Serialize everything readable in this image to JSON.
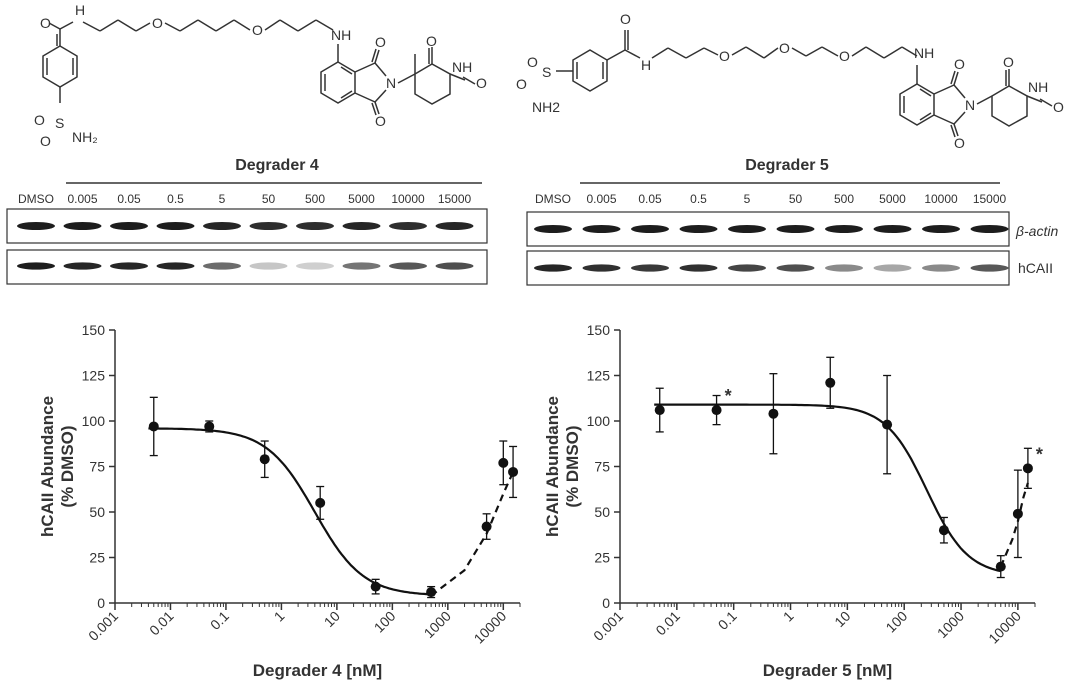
{
  "panels": [
    {
      "name": "degrader-4",
      "structure_atoms": {
        "amide_o": "O",
        "amide_nh": "H",
        "ether_o1": "O",
        "ether_o2": "O",
        "aryl_nh": "NH",
        "imide_o_top": "O",
        "imide_o_bottom": "O",
        "imide_n": "N",
        "glut_o_top": "O",
        "glut_nh": "NH",
        "glut_o_right": "O",
        "sulfonyl_o1": "O",
        "sulfonyl_s": "S",
        "sulfonyl_o2": "O",
        "sulfonyl_nh2": "NH₂"
      },
      "blot": {
        "title": "Degrader 4",
        "lane_labels": [
          "DMSO",
          "0.005",
          "0.05",
          "0.5",
          "5",
          "50",
          "500",
          "5000",
          "10000",
          "15000"
        ],
        "row_labels": [],
        "actin_intensity": [
          1,
          1,
          1,
          1,
          0.95,
          0.9,
          0.9,
          0.95,
          0.9,
          0.95
        ],
        "hcaii_intensity": [
          1,
          0.95,
          0.95,
          0.95,
          0.6,
          0.15,
          0.1,
          0.55,
          0.7,
          0.75
        ]
      }
    },
    {
      "name": "degrader-5",
      "structure_atoms": {
        "amide_o": "O",
        "amide_nh": "H",
        "ether_o1": "O",
        "ether_o2": "O",
        "ether_o3": "O",
        "aryl_nh": "NH",
        "imide_o_top": "O",
        "imide_o_bottom": "O",
        "imide_n": "N",
        "glut_o_top": "O",
        "glut_nh": "NH",
        "glut_o_right": "O",
        "sulfonyl_o1": "O",
        "sulfonyl_s": "S",
        "sulfonyl_o2": "O",
        "sulfonyl_nh2": "NH2"
      },
      "blot": {
        "title": "Degrader 5",
        "lane_labels": [
          "DMSO",
          "0.005",
          "0.05",
          "0.5",
          "5",
          "50",
          "500",
          "5000",
          "10000",
          "15000"
        ],
        "row_labels": [
          "β-actin",
          "hCAII"
        ],
        "actin_intensity": [
          1,
          1,
          1,
          1,
          1,
          1,
          1,
          1,
          1,
          1
        ],
        "hcaii_intensity": [
          0.95,
          0.9,
          0.85,
          0.9,
          0.8,
          0.75,
          0.45,
          0.3,
          0.45,
          0.7
        ]
      }
    }
  ],
  "chart_data": [
    {
      "type": "scatter",
      "title": "",
      "xlabel": "Degrader 4 [nM]",
      "ylabel": "hCAII Abundance",
      "ylabel2": "(% DMSO)",
      "x_scale": "log",
      "xlim": [
        0.001,
        20000
      ],
      "ylim": [
        0,
        150
      ],
      "x_ticks": [
        "0.001",
        "0.01",
        "0.1",
        "1",
        "10",
        "100",
        "1000",
        "10000"
      ],
      "y_ticks": [
        "0",
        "25",
        "50",
        "75",
        "100",
        "125",
        "150"
      ],
      "points": [
        {
          "x": 0.005,
          "y": 97,
          "err": 16
        },
        {
          "x": 0.05,
          "y": 97,
          "err": 3
        },
        {
          "x": 0.5,
          "y": 79,
          "err": 10
        },
        {
          "x": 5,
          "y": 55,
          "err": 9
        },
        {
          "x": 50,
          "y": 9,
          "err": 4
        },
        {
          "x": 500,
          "y": 6,
          "err": 3
        },
        {
          "x": 5000,
          "y": 42,
          "err": 7
        },
        {
          "x": 10000,
          "y": 77,
          "err": 12
        },
        {
          "x": 15000,
          "y": 72,
          "err": 14
        }
      ],
      "fit": {
        "top": 96,
        "bottom": 4,
        "ec50": 4,
        "hill": 1,
        "x_end": 500
      },
      "hook_curve": [
        [
          500,
          4
        ],
        [
          2000,
          18
        ],
        [
          5000,
          38
        ],
        [
          10000,
          60
        ],
        [
          15000,
          72
        ]
      ],
      "annotations": []
    },
    {
      "type": "scatter",
      "title": "",
      "xlabel": "Degrader 5 [nM]",
      "ylabel": "hCAII Abundance",
      "ylabel2": "(% DMSO)",
      "x_scale": "log",
      "xlim": [
        0.001,
        20000
      ],
      "ylim": [
        0,
        150
      ],
      "x_ticks": [
        "0.001",
        "0.01",
        "0.1",
        "1",
        "10",
        "100",
        "1000",
        "10000"
      ],
      "y_ticks": [
        "0",
        "25",
        "50",
        "75",
        "100",
        "125",
        "150"
      ],
      "points": [
        {
          "x": 0.005,
          "y": 106,
          "err": 12
        },
        {
          "x": 0.05,
          "y": 106,
          "err": 8
        },
        {
          "x": 0.5,
          "y": 104,
          "err": 22
        },
        {
          "x": 5,
          "y": 121,
          "err": 14
        },
        {
          "x": 50,
          "y": 98,
          "err": 27
        },
        {
          "x": 500,
          "y": 40,
          "err": 7
        },
        {
          "x": 5000,
          "y": 20,
          "err": 6
        },
        {
          "x": 10000,
          "y": 49,
          "err": 24
        },
        {
          "x": 15000,
          "y": 74,
          "err": 11
        }
      ],
      "fit": {
        "top": 109,
        "bottom": 15,
        "ec50": 250,
        "hill": 1.2,
        "x_end": 5000
      },
      "hook_curve": [
        [
          5000,
          20
        ],
        [
          8000,
          35
        ],
        [
          10000,
          45
        ],
        [
          12500,
          58
        ],
        [
          15000,
          66
        ]
      ],
      "annotations": [
        {
          "text": "*",
          "x": 0.05,
          "y": 106
        },
        {
          "text": "*",
          "x": 15000,
          "y": 74
        }
      ]
    }
  ]
}
